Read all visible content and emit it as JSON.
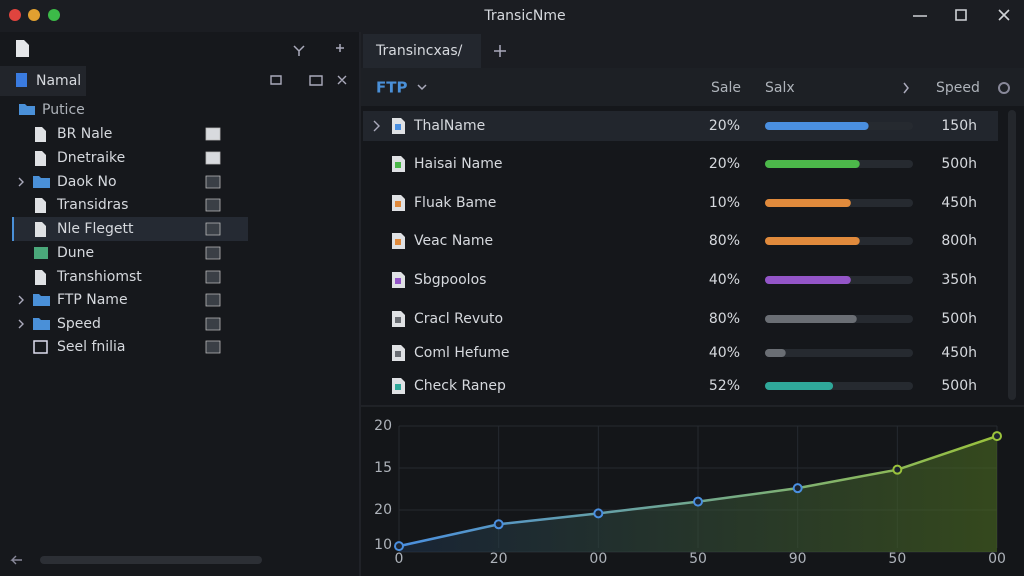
{
  "window": {
    "title": "TransicNme"
  },
  "sidebar": {
    "tab": "Namal",
    "root": "Putice",
    "items": [
      {
        "label": "BR Nale",
        "icon": "file"
      },
      {
        "label": "Dnetraike",
        "icon": "file"
      },
      {
        "label": "Daok No",
        "icon": "folder"
      },
      {
        "label": "Transidras",
        "icon": "file"
      },
      {
        "label": "Nle Flegett",
        "icon": "file",
        "selected": true
      },
      {
        "label": "Dune",
        "icon": "image"
      },
      {
        "label": "Transhiomst",
        "icon": "file"
      },
      {
        "label": "FTP Name",
        "icon": "folder"
      },
      {
        "label": "Speed",
        "icon": "folder"
      },
      {
        "label": "Seel fnilia",
        "icon": "box"
      }
    ]
  },
  "main": {
    "tab": "Transincxas/",
    "columns": [
      "FTP",
      "Sale",
      "Salx",
      "Speed"
    ],
    "rows": [
      {
        "name": "ThalName",
        "share": "20%",
        "speed": "150h",
        "progress": 0.7,
        "color": "#4a8fe0"
      },
      {
        "name": "Haisai Name",
        "share": "20%",
        "speed": "500h",
        "progress": 0.64,
        "color": "#4cb84a"
      },
      {
        "name": "Fluak Bame",
        "share": "10%",
        "speed": "450h",
        "progress": 0.58,
        "color": "#e08a3c"
      },
      {
        "name": "Veac Name",
        "share": "80%",
        "speed": "800h",
        "progress": 0.64,
        "color": "#e08a3c"
      },
      {
        "name": "Sbgpoolos",
        "share": "40%",
        "speed": "350h",
        "progress": 0.58,
        "color": "#9355c8"
      },
      {
        "name": "Cracl Revuto",
        "share": "80%",
        "speed": "500h",
        "progress": 0.62,
        "color": "#6a6e74"
      },
      {
        "name": "Coml Hefume",
        "share": "40%",
        "speed": "450h",
        "progress": 0.14,
        "color": "#6a6e74"
      },
      {
        "name": "Check Ranep",
        "share": "52%",
        "speed": "500h",
        "progress": 0.46,
        "color": "#2fa89a"
      }
    ]
  },
  "chart": {
    "type": "line",
    "xlim": [
      0,
      6
    ],
    "ylim": [
      5,
      20
    ],
    "xticks": [
      0,
      {
        "value": 1,
        "label": "20"
      },
      {
        "value": 2,
        "label": "00"
      },
      {
        "value": 3,
        "label": "50"
      },
      {
        "value": 4,
        "label": "90"
      },
      {
        "value": 5,
        "label": "50"
      },
      {
        "value": 6,
        "label": "00"
      }
    ],
    "yticks": [
      20,
      15,
      {
        "value": 10,
        "label": "20"
      },
      {
        "value": 5,
        "label": "10"
      }
    ],
    "x": [
      0,
      1,
      2,
      3,
      4,
      5,
      6
    ],
    "values": [
      5.7,
      8.3,
      9.6,
      11.0,
      12.6,
      14.8,
      18.8
    ],
    "color": "#4a8fe0",
    "grid": true
  }
}
